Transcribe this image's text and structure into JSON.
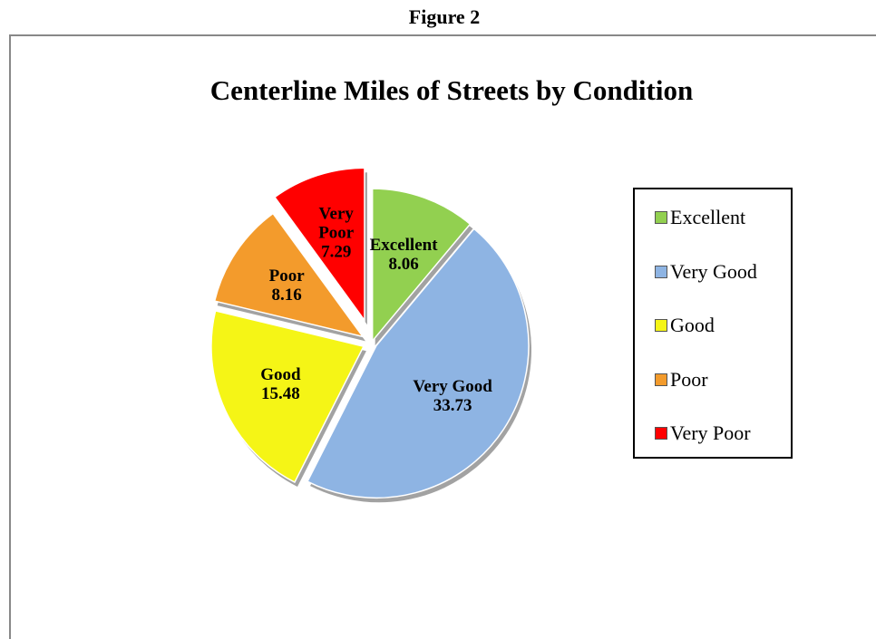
{
  "caption": "Figure 2",
  "chart_data": {
    "type": "pie",
    "title": "Centerline Miles of Streets by Condition",
    "categories": [
      "Excellent",
      "Very Good",
      "Good",
      "Poor",
      "Very Poor"
    ],
    "values": [
      8.06,
      33.73,
      15.48,
      8.16,
      7.29
    ],
    "colors": [
      "#92d050",
      "#8eb4e3",
      "#f5f516",
      "#f39b2c",
      "#ff0000"
    ],
    "legend": "right"
  }
}
